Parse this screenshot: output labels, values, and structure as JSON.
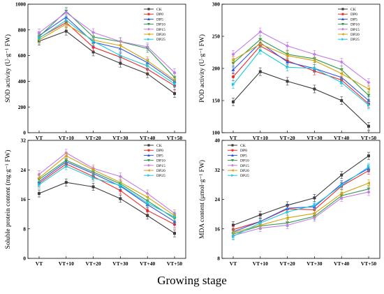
{
  "figure": {
    "xlabel": "Growing stage"
  },
  "chart_data": [
    {
      "type": "line",
      "ylabel": "SOD activity (U·g⁻¹ FW)",
      "categories": [
        "VT",
        "VT+10",
        "VT+20",
        "VT+30",
        "VT+40",
        "VT+50"
      ],
      "ylim": [
        0,
        1000
      ],
      "yticks": [
        "0",
        "200",
        "400",
        "600",
        "800",
        "1000"
      ],
      "legend_position": "top-right",
      "series": [
        {
          "name": "CK",
          "color": "#3c3c3c",
          "marker": "square",
          "values": [
            712,
            790,
            628,
            540,
            458,
            305
          ]
        },
        {
          "name": "DP0",
          "color": "#ee2a2a",
          "marker": "circle",
          "values": [
            738,
            858,
            665,
            588,
            494,
            365
          ]
        },
        {
          "name": "DP5",
          "color": "#2f55e6",
          "marker": "triangle-up",
          "values": [
            755,
            900,
            705,
            655,
            545,
            398
          ]
        },
        {
          "name": "DP10",
          "color": "#2a9a4a",
          "marker": "triangle-down",
          "values": [
            748,
            945,
            745,
            708,
            655,
            430
          ]
        },
        {
          "name": "DP15",
          "color": "#c27ae8",
          "marker": "diamond",
          "values": [
            778,
            935,
            780,
            710,
            668,
            468
          ]
        },
        {
          "name": "DP20",
          "color": "#d6a20c",
          "marker": "triangle-left",
          "values": [
            722,
            845,
            720,
            678,
            560,
            410
          ]
        },
        {
          "name": "DP25",
          "color": "#1cc8dc",
          "marker": "triangle-right",
          "values": [
            735,
            875,
            712,
            600,
            520,
            380
          ]
        }
      ]
    },
    {
      "type": "line",
      "ylabel": "POD activity (U·g⁻¹ FW)",
      "categories": [
        "VT",
        "VT+10",
        "VT+20",
        "VT+30",
        "VT+40",
        "VT+50"
      ],
      "ylim": [
        100,
        300
      ],
      "yticks": [
        "100",
        "150",
        "200",
        "250",
        "300"
      ],
      "legend_position": "top-right",
      "series": [
        {
          "name": "CK",
          "color": "#3c3c3c",
          "marker": "square",
          "values": [
            148,
            195,
            180,
            168,
            150,
            110
          ]
        },
        {
          "name": "DP0",
          "color": "#ee2a2a",
          "marker": "circle",
          "values": [
            187,
            235,
            212,
            196,
            182,
            145
          ]
        },
        {
          "name": "DP5",
          "color": "#2f55e6",
          "marker": "triangle-up",
          "values": [
            198,
            240,
            210,
            200,
            186,
            150
          ]
        },
        {
          "name": "DP10",
          "color": "#2a9a4a",
          "marker": "triangle-down",
          "values": [
            208,
            245,
            222,
            215,
            198,
            158
          ]
        },
        {
          "name": "DP15",
          "color": "#c27ae8",
          "marker": "diamond",
          "values": [
            222,
            257,
            235,
            222,
            210,
            178
          ]
        },
        {
          "name": "DP20",
          "color": "#d6a20c",
          "marker": "triangle-left",
          "values": [
            213,
            238,
            220,
            212,
            192,
            168
          ]
        },
        {
          "name": "DP25",
          "color": "#1cc8dc",
          "marker": "triangle-right",
          "values": [
            175,
            228,
            202,
            200,
            178,
            143
          ]
        }
      ]
    },
    {
      "type": "line",
      "ylabel": "Soluble protein content (mg·g⁻¹ FW)",
      "categories": [
        "VT",
        "VT+10",
        "VT+20",
        "VT+30",
        "VT+40",
        "VT+50"
      ],
      "ylim": [
        0,
        32
      ],
      "yticks": [
        "0",
        "8",
        "16",
        "24",
        "32"
      ],
      "legend_position": "top-right",
      "series": [
        {
          "name": "CK",
          "color": "#3c3c3c",
          "marker": "square",
          "values": [
            17.6,
            20.6,
            19.4,
            16.2,
            11.6,
            6.8
          ]
        },
        {
          "name": "DP0",
          "color": "#ee2a2a",
          "marker": "circle",
          "values": [
            20.4,
            25.6,
            22.2,
            18.4,
            13.0,
            9.2
          ]
        },
        {
          "name": "DP5",
          "color": "#2f55e6",
          "marker": "triangle-up",
          "values": [
            20.8,
            26.2,
            23.0,
            19.6,
            14.6,
            10.0
          ]
        },
        {
          "name": "DP10",
          "color": "#2a9a4a",
          "marker": "triangle-down",
          "values": [
            21.4,
            26.6,
            23.4,
            20.2,
            15.6,
            10.8
          ]
        },
        {
          "name": "DP15",
          "color": "#c27ae8",
          "marker": "diamond",
          "values": [
            22.8,
            28.6,
            24.4,
            22.2,
            17.6,
            12.2
          ]
        },
        {
          "name": "DP20",
          "color": "#d6a20c",
          "marker": "triangle-left",
          "values": [
            21.8,
            27.8,
            24.0,
            20.6,
            16.6,
            11.6
          ]
        },
        {
          "name": "DP25",
          "color": "#1cc8dc",
          "marker": "triangle-right",
          "values": [
            20.0,
            25.0,
            21.8,
            19.8,
            15.0,
            11.2
          ]
        }
      ]
    },
    {
      "type": "line",
      "ylabel": "MDA content (μmol·g⁻¹ FW)",
      "categories": [
        "VT",
        "VT+10",
        "VT+20",
        "VT+30",
        "VT+40",
        "VT+50"
      ],
      "ylim": [
        8,
        40
      ],
      "yticks": [
        "8",
        "16",
        "24",
        "32",
        "40"
      ],
      "legend_position": "top-left",
      "series": [
        {
          "name": "CK",
          "color": "#3c3c3c",
          "marker": "square",
          "values": [
            17.0,
            19.8,
            22.4,
            24.4,
            30.6,
            35.8
          ]
        },
        {
          "name": "DP0",
          "color": "#ee2a2a",
          "marker": "circle",
          "values": [
            15.8,
            18.0,
            21.4,
            21.2,
            27.6,
            31.8
          ]
        },
        {
          "name": "DP5",
          "color": "#2f55e6",
          "marker": "triangle-up",
          "values": [
            15.2,
            18.0,
            21.6,
            22.0,
            28.2,
            32.4
          ]
        },
        {
          "name": "DP10",
          "color": "#2a9a4a",
          "marker": "triangle-down",
          "values": [
            14.6,
            16.8,
            17.6,
            19.4,
            25.0,
            26.8
          ]
        },
        {
          "name": "DP15",
          "color": "#c27ae8",
          "marker": "diamond",
          "values": [
            14.2,
            16.2,
            17.0,
            19.0,
            24.4,
            26.0
          ]
        },
        {
          "name": "DP20",
          "color": "#d6a20c",
          "marker": "triangle-left",
          "values": [
            15.0,
            17.0,
            19.0,
            20.2,
            25.6,
            28.4
          ]
        },
        {
          "name": "DP25",
          "color": "#1cc8dc",
          "marker": "triangle-right",
          "values": [
            14.0,
            17.6,
            20.6,
            22.4,
            27.8,
            32.8
          ]
        }
      ]
    }
  ]
}
